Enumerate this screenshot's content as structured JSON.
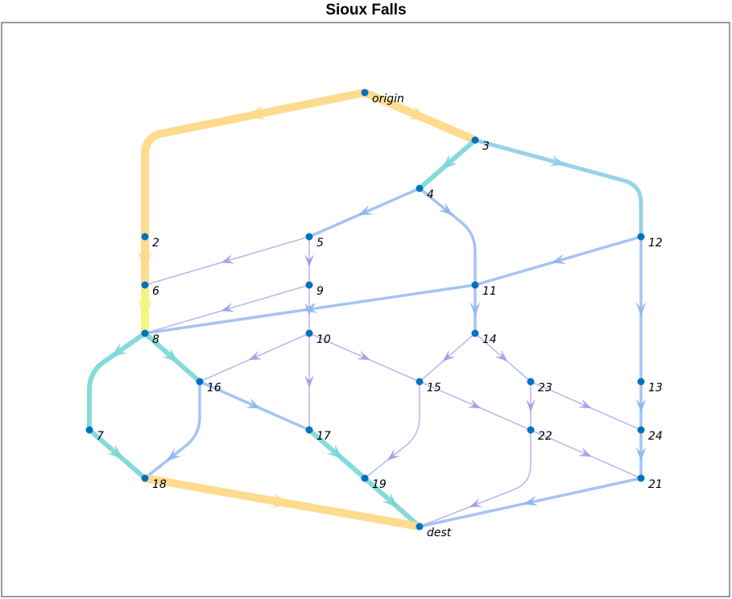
{
  "title": "Sioux Falls",
  "colors": {
    "node": "#0072BD",
    "hot": "#FFD98A",
    "hot_peak": "#F4F57A",
    "teal": "#79D6D6",
    "sky": "#8BCFE6",
    "blue": "#8FB5F0",
    "lavender": "#9C9CE8"
  },
  "nodes": [
    {
      "id": "origin",
      "label": "origin"
    },
    {
      "id": "2",
      "label": "2"
    },
    {
      "id": "3",
      "label": "3"
    },
    {
      "id": "4",
      "label": "4"
    },
    {
      "id": "5",
      "label": "5"
    },
    {
      "id": "6",
      "label": "6"
    },
    {
      "id": "7",
      "label": "7"
    },
    {
      "id": "8",
      "label": "8"
    },
    {
      "id": "9",
      "label": "9"
    },
    {
      "id": "10",
      "label": "10"
    },
    {
      "id": "11",
      "label": "11"
    },
    {
      "id": "12",
      "label": "12"
    },
    {
      "id": "13",
      "label": "13"
    },
    {
      "id": "14",
      "label": "14"
    },
    {
      "id": "15",
      "label": "15"
    },
    {
      "id": "16",
      "label": "16"
    },
    {
      "id": "17",
      "label": "17"
    },
    {
      "id": "18",
      "label": "18"
    },
    {
      "id": "19",
      "label": "19"
    },
    {
      "id": "dest",
      "label": "dest"
    },
    {
      "id": "21",
      "label": "21"
    },
    {
      "id": "22",
      "label": "22"
    },
    {
      "id": "23",
      "label": "23"
    },
    {
      "id": "24",
      "label": "24"
    }
  ],
  "edges": [
    {
      "from": "origin",
      "to": "2",
      "color": "hot"
    },
    {
      "from": "origin",
      "to": "3",
      "color": "hot"
    },
    {
      "from": "2",
      "to": "6",
      "color": "hot"
    },
    {
      "from": "6",
      "to": "8",
      "color": "hot_peak"
    },
    {
      "from": "3",
      "to": "4",
      "color": "teal"
    },
    {
      "from": "3",
      "to": "12",
      "color": "sky"
    },
    {
      "from": "4",
      "to": "5",
      "color": "blue"
    },
    {
      "from": "4",
      "to": "11",
      "color": "blue"
    },
    {
      "from": "5",
      "to": "6",
      "color": "lavender"
    },
    {
      "from": "5",
      "to": "9",
      "color": "lavender"
    },
    {
      "from": "9",
      "to": "8",
      "color": "lavender"
    },
    {
      "from": "9",
      "to": "10",
      "color": "lavender"
    },
    {
      "from": "12",
      "to": "11",
      "color": "blue"
    },
    {
      "from": "12",
      "to": "13",
      "color": "blue"
    },
    {
      "from": "11",
      "to": "8",
      "color": "blue"
    },
    {
      "from": "11",
      "to": "14",
      "color": "blue"
    },
    {
      "from": "8",
      "to": "7",
      "color": "teal"
    },
    {
      "from": "8",
      "to": "16",
      "color": "teal"
    },
    {
      "from": "7",
      "to": "18",
      "color": "teal"
    },
    {
      "from": "16",
      "to": "18",
      "color": "blue"
    },
    {
      "from": "16",
      "to": "17",
      "color": "blue"
    },
    {
      "from": "10",
      "to": "16",
      "color": "lavender"
    },
    {
      "from": "10",
      "to": "17",
      "color": "lavender"
    },
    {
      "from": "10",
      "to": "15",
      "color": "lavender"
    },
    {
      "from": "14",
      "to": "15",
      "color": "lavender"
    },
    {
      "from": "14",
      "to": "23",
      "color": "lavender"
    },
    {
      "from": "15",
      "to": "19",
      "color": "lavender"
    },
    {
      "from": "15",
      "to": "22",
      "color": "lavender"
    },
    {
      "from": "17",
      "to": "19",
      "color": "teal"
    },
    {
      "from": "19",
      "to": "dest",
      "color": "teal"
    },
    {
      "from": "18",
      "to": "dest",
      "color": "hot"
    },
    {
      "from": "23",
      "to": "22",
      "color": "lavender"
    },
    {
      "from": "23",
      "to": "24",
      "color": "lavender"
    },
    {
      "from": "13",
      "to": "24",
      "color": "blue"
    },
    {
      "from": "24",
      "to": "21",
      "color": "blue"
    },
    {
      "from": "22",
      "to": "21",
      "color": "lavender"
    },
    {
      "from": "22",
      "to": "dest",
      "color": "lavender"
    },
    {
      "from": "21",
      "to": "dest",
      "color": "blue"
    }
  ]
}
